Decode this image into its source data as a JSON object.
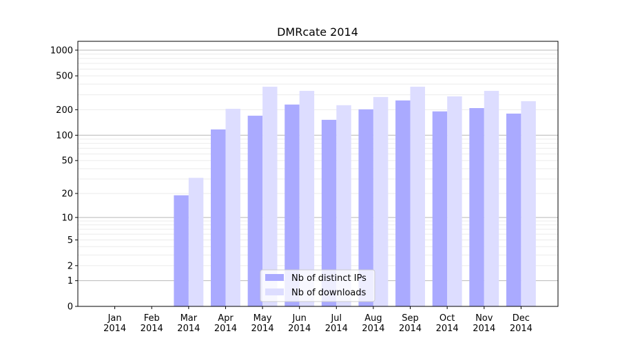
{
  "chart_data": {
    "type": "bar",
    "title": "DMRcate 2014",
    "xlabel": "",
    "ylabel": "",
    "y_scale": "log(1+y)",
    "ylim": [
      0,
      1270
    ],
    "y_ticks": [
      0,
      1,
      2,
      5,
      10,
      20,
      50,
      100,
      200,
      500,
      1000
    ],
    "grid": true,
    "legend_position": "bottom-center",
    "categories": [
      "Jan\n2014",
      "Feb\n2014",
      "Mar\n2014",
      "Apr\n2014",
      "May\n2014",
      "Jun\n2014",
      "Jul\n2014",
      "Aug\n2014",
      "Sep\n2014",
      "Oct\n2014",
      "Nov\n2014",
      "Dec\n2014"
    ],
    "series": [
      {
        "name": "Nb of distinct IPs",
        "color": "#aaaaff",
        "values": [
          0,
          0,
          19,
          117,
          170,
          230,
          152,
          202,
          257,
          191,
          209,
          180
        ]
      },
      {
        "name": "Nb of downloads",
        "color": "#ddddff",
        "values": [
          0,
          0,
          31,
          205,
          373,
          333,
          226,
          282,
          373,
          287,
          333,
          252
        ]
      }
    ]
  }
}
